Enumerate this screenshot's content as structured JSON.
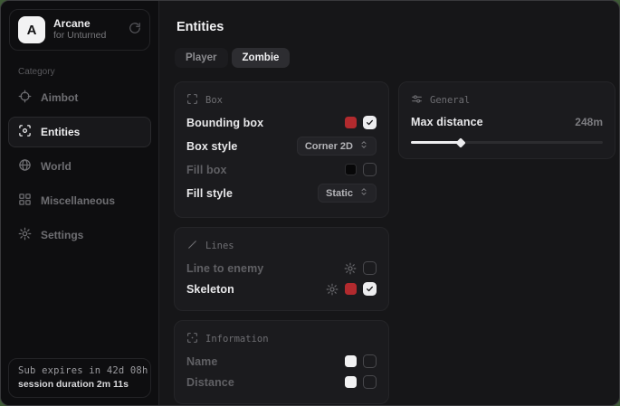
{
  "colors": {
    "accent_red": "#b22a2e",
    "checkbox_checked": "#ededef",
    "window_background": "#161618",
    "sidebar_background": "#0e0e10",
    "card_background": "#1b1b1e",
    "desktop_green": "#3e5a36"
  },
  "sidebar": {
    "logo_letter": "A",
    "app_name": "Arcane",
    "app_subtitle": "for Unturned",
    "category_label": "Category",
    "items": [
      {
        "label": "Aimbot",
        "icon": "crosshair-icon",
        "active": false
      },
      {
        "label": "Entities",
        "icon": "scan-eye-icon",
        "active": true
      },
      {
        "label": "World",
        "icon": "globe-icon",
        "active": false
      },
      {
        "label": "Miscellaneous",
        "icon": "grid-icon",
        "active": false
      },
      {
        "label": "Settings",
        "icon": "gear-icon",
        "active": false
      }
    ],
    "subscription": {
      "expires": "Sub expires in 42d 08h",
      "session": "session duration 2m 11s"
    }
  },
  "main": {
    "title": "Entities",
    "tabs": [
      {
        "label": "Player",
        "active": false
      },
      {
        "label": "Zombie",
        "active": true
      }
    ],
    "cards": {
      "box": {
        "title": "Box",
        "rows": [
          {
            "label": "Bounding box",
            "enabled": true,
            "swatch": "#b22a2e",
            "checked": true
          },
          {
            "label": "Box style",
            "enabled": true,
            "control": "select",
            "value": "Corner 2D"
          },
          {
            "label": "Fill box",
            "enabled": false,
            "swatch": "#070708",
            "checked": false
          },
          {
            "label": "Fill style",
            "enabled": true,
            "control": "select",
            "value": "Static"
          }
        ]
      },
      "lines": {
        "title": "Lines",
        "rows": [
          {
            "label": "Line to enemy",
            "enabled": false,
            "has_settings": true,
            "checked": false
          },
          {
            "label": "Skeleton",
            "enabled": true,
            "has_settings": true,
            "swatch": "#b22a2e",
            "checked": true
          }
        ]
      },
      "information": {
        "title": "Information",
        "rows": [
          {
            "label": "Name",
            "enabled": false,
            "swatch": "#f2f2f3",
            "checked": false
          },
          {
            "label": "Distance",
            "enabled": false,
            "swatch": "#f2f2f3",
            "checked": false
          }
        ]
      },
      "general": {
        "title": "General",
        "rows": [
          {
            "label": "Max distance",
            "value": "248m"
          }
        ],
        "slider_percent": 26
      }
    }
  }
}
